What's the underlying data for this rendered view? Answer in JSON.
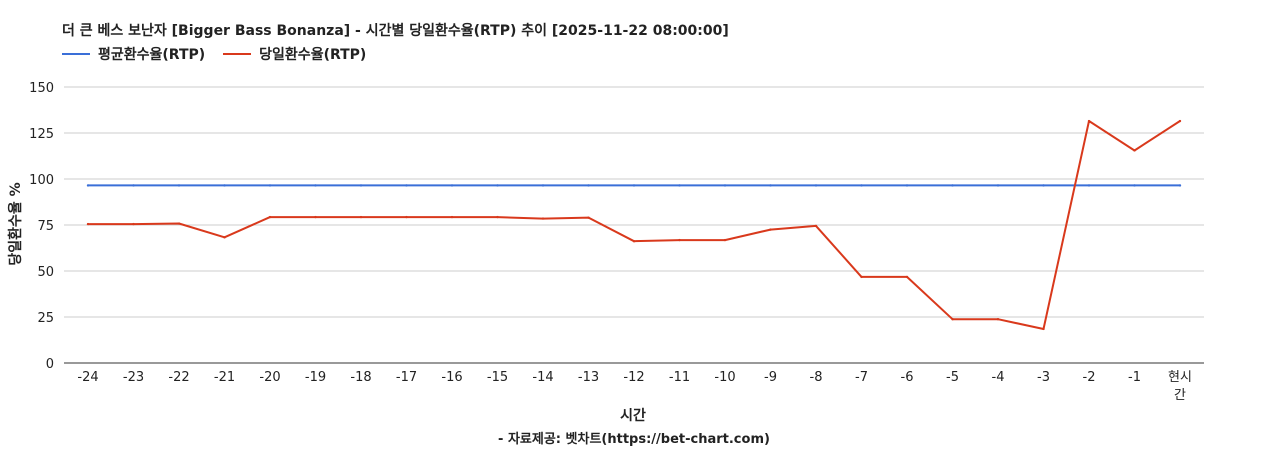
{
  "chart_data": {
    "type": "line",
    "title": "더 큰 베스 보난자 [Bigger Bass Bonanza] - 시간별 당일환수율(RTP) 추이 [2025-11-22 08:00:00]",
    "xlabel": "시간",
    "ylabel": "당일환수율 %",
    "source": "- 자료제공: 벳차트(https://bet-chart.com)",
    "categories": [
      "-24",
      "-23",
      "-22",
      "-21",
      "-20",
      "-19",
      "-18",
      "-17",
      "-16",
      "-15",
      "-14",
      "-13",
      "-12",
      "-11",
      "-10",
      "-9",
      "-8",
      "-7",
      "-6",
      "-5",
      "-4",
      "-3",
      "-2",
      "-1",
      "현시간"
    ],
    "ylim": [
      0,
      150
    ],
    "yticks": [
      0,
      25,
      50,
      75,
      100,
      125,
      150
    ],
    "grid": true,
    "legend_position": "top-left",
    "series": [
      {
        "name": "평균환수율(RTP)",
        "color": "#3a6fd8",
        "values": [
          96.5,
          96.5,
          96.5,
          96.5,
          96.5,
          96.5,
          96.5,
          96.5,
          96.5,
          96.5,
          96.5,
          96.5,
          96.5,
          96.5,
          96.5,
          96.5,
          96.5,
          96.5,
          96.5,
          96.5,
          96.5,
          96.5,
          96.5,
          96.5,
          96.5
        ]
      },
      {
        "name": "당일환수율(RTP)",
        "color": "#d9391c",
        "values": [
          75.5,
          75.5,
          75.8,
          68.3,
          79.3,
          79.3,
          79.3,
          79.3,
          79.3,
          79.3,
          78.5,
          79,
          66.2,
          66.8,
          66.8,
          72.5,
          74.5,
          46.8,
          46.8,
          23.8,
          23.8,
          18.5,
          131.5,
          115.5,
          131.5
        ]
      }
    ]
  }
}
